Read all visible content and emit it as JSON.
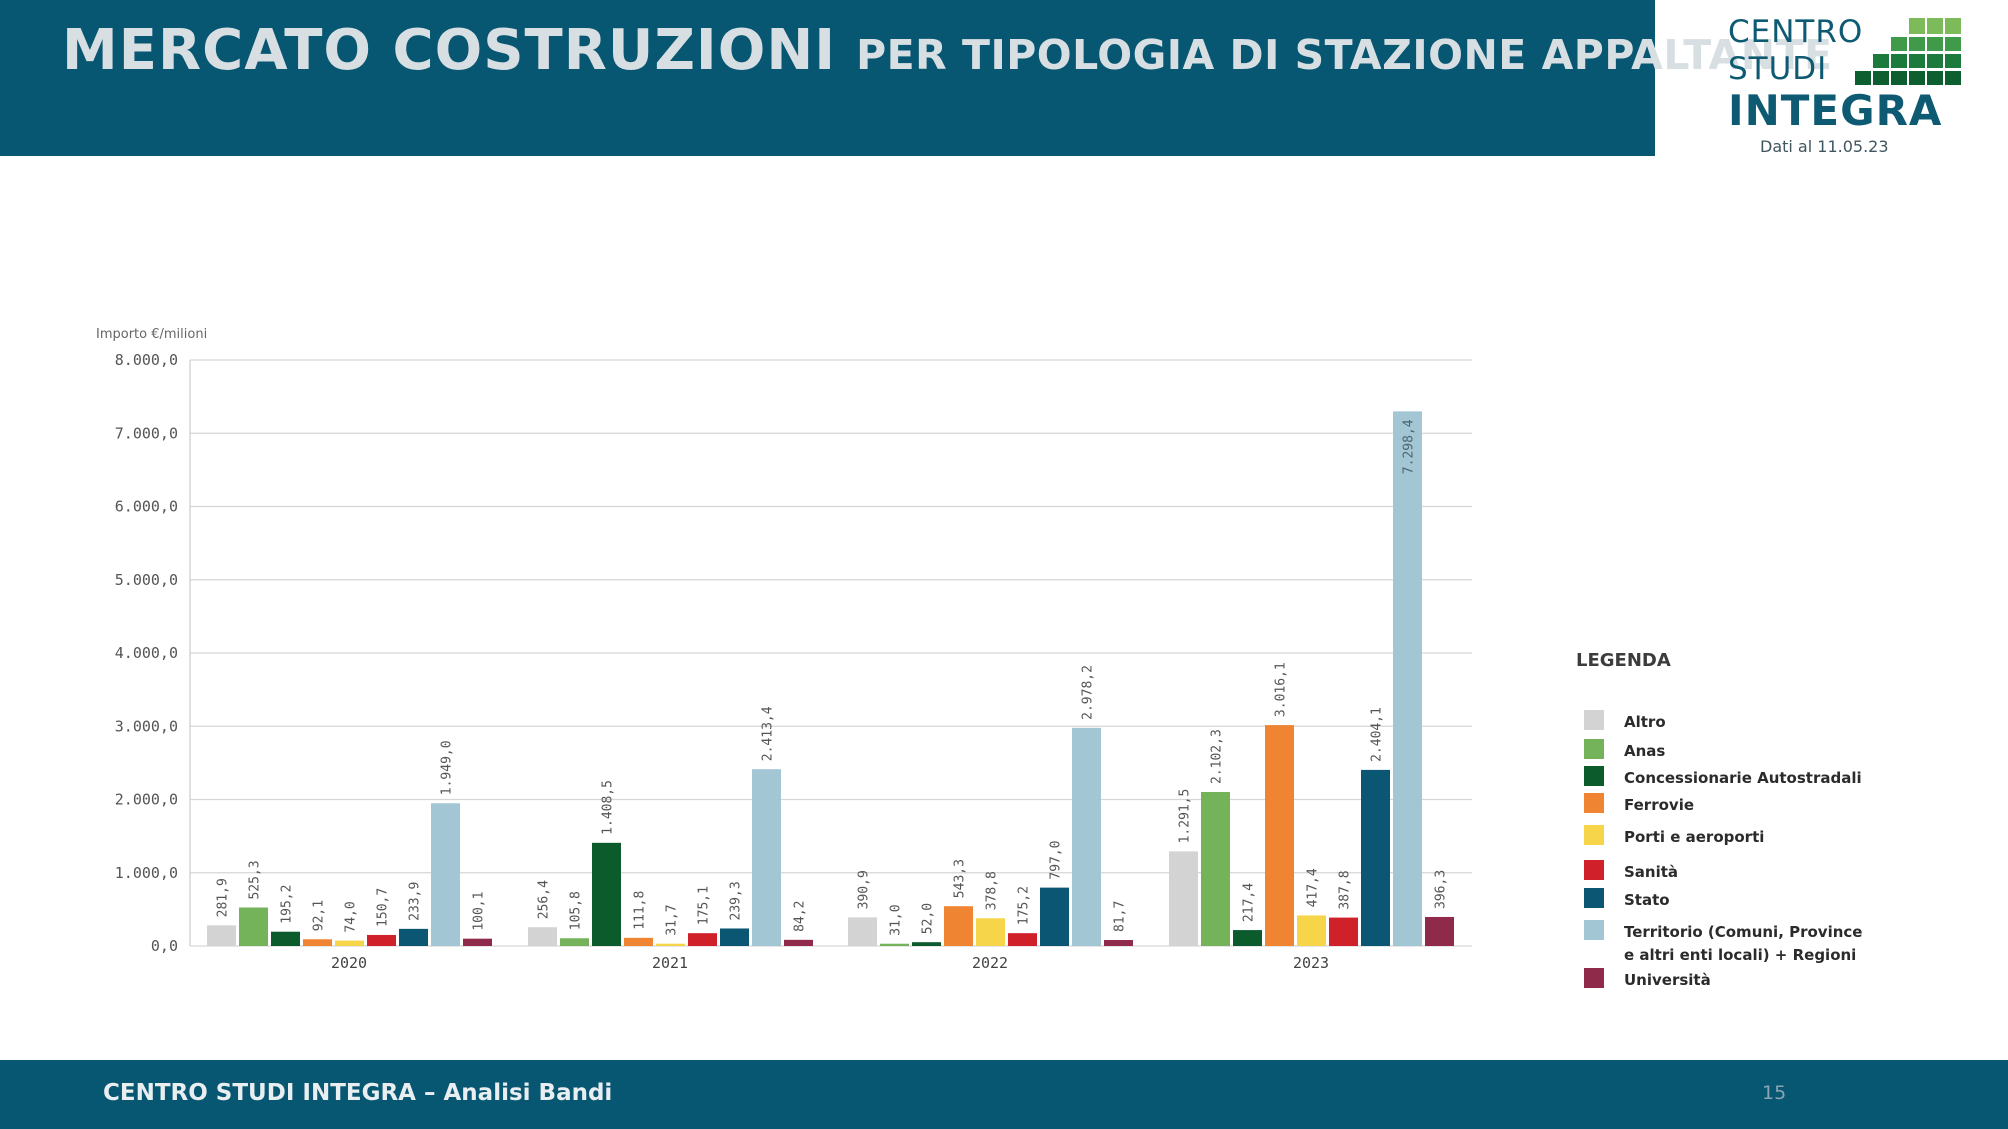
{
  "header": {
    "title_main": "MERCATO COSTRUZIONI",
    "title_sub": "PER TIPOLOGIA DI STAZIONE APPALTANTE"
  },
  "logo": {
    "line1": "CENTRO",
    "line2": "STUDI",
    "line3": "INTEGRA",
    "date": "Dati al 11.05.23"
  },
  "legend": {
    "title": "LEGENDA"
  },
  "footer": {
    "text": "CENTRO STUDI INTEGRA – Analisi Bandi",
    "page": "15"
  },
  "colors": {
    "header_bg": "#075672",
    "Altro": "#d3d3d3",
    "Anas": "#74b35a",
    "Concessionarie Autostradali": "#0b5b2c",
    "Ferrovie": "#ef8533",
    "Porti e aeroporti": "#f7d54a",
    "Sanità": "#d0202a",
    "Stato": "#0b5673",
    "Territorio": "#a2c6d3",
    "Università": "#8f2a4b"
  },
  "chart_data": {
    "type": "bar",
    "ylabel": "Importo €/milioni",
    "ylim": [
      0,
      8000
    ],
    "yticks": [
      "0,0",
      "1.000,0",
      "2.000,0",
      "3.000,0",
      "4.000,0",
      "5.000,0",
      "6.000,0",
      "7.000,0",
      "8.000,0"
    ],
    "grid": true,
    "legend_placement": "right",
    "categories": [
      "2020",
      "2021",
      "2022",
      "2023"
    ],
    "series": [
      {
        "name": "Altro",
        "values": [
          281.9,
          256.4,
          390.9,
          1291.5
        ],
        "labels": [
          "281,9",
          "256,4",
          "390,9",
          "1.291,5"
        ]
      },
      {
        "name": "Anas",
        "values": [
          525.3,
          105.8,
          31.0,
          2102.3
        ],
        "labels": [
          "525,3",
          "105,8",
          "31,0",
          "2.102,3"
        ]
      },
      {
        "name": "Concessionarie Autostradali",
        "values": [
          195.2,
          1408.5,
          52.0,
          217.4
        ],
        "labels": [
          "195,2",
          "1.408,5",
          "52,0",
          "217,4"
        ]
      },
      {
        "name": "Ferrovie",
        "values": [
          92.1,
          111.8,
          543.3,
          3016.1
        ],
        "labels": [
          "92,1",
          "111,8",
          "543,3",
          "3.016,1"
        ]
      },
      {
        "name": "Porti e aeroporti",
        "values": [
          74.0,
          31.7,
          378.8,
          417.4
        ],
        "labels": [
          "74,0",
          "31,7",
          "378,8",
          "417,4"
        ]
      },
      {
        "name": "Sanità",
        "values": [
          150.7,
          175.1,
          175.2,
          387.8
        ],
        "labels": [
          "150,7",
          "175,1",
          "175,2",
          "387,8"
        ]
      },
      {
        "name": "Stato",
        "values": [
          233.9,
          239.3,
          797.0,
          2404.1
        ],
        "labels": [
          "233,9",
          "239,3",
          "797,0",
          "2.404,1"
        ]
      },
      {
        "name": "Territorio (Comuni, Province e altri enti locali) + Regioni",
        "legend_lines": [
          "Territorio (Comuni, Province",
          "e altri enti locali) + Regioni"
        ],
        "values": [
          1949.0,
          2413.4,
          2978.2,
          7298.4
        ],
        "labels": [
          "1.949,0",
          "2.413,4",
          "2.978,2",
          "7.298,4"
        ]
      },
      {
        "name": "Università",
        "values": [
          100.1,
          84.2,
          81.7,
          396.3
        ],
        "labels": [
          "100,1",
          "84,2",
          "81,7",
          "396,3"
        ]
      }
    ]
  }
}
